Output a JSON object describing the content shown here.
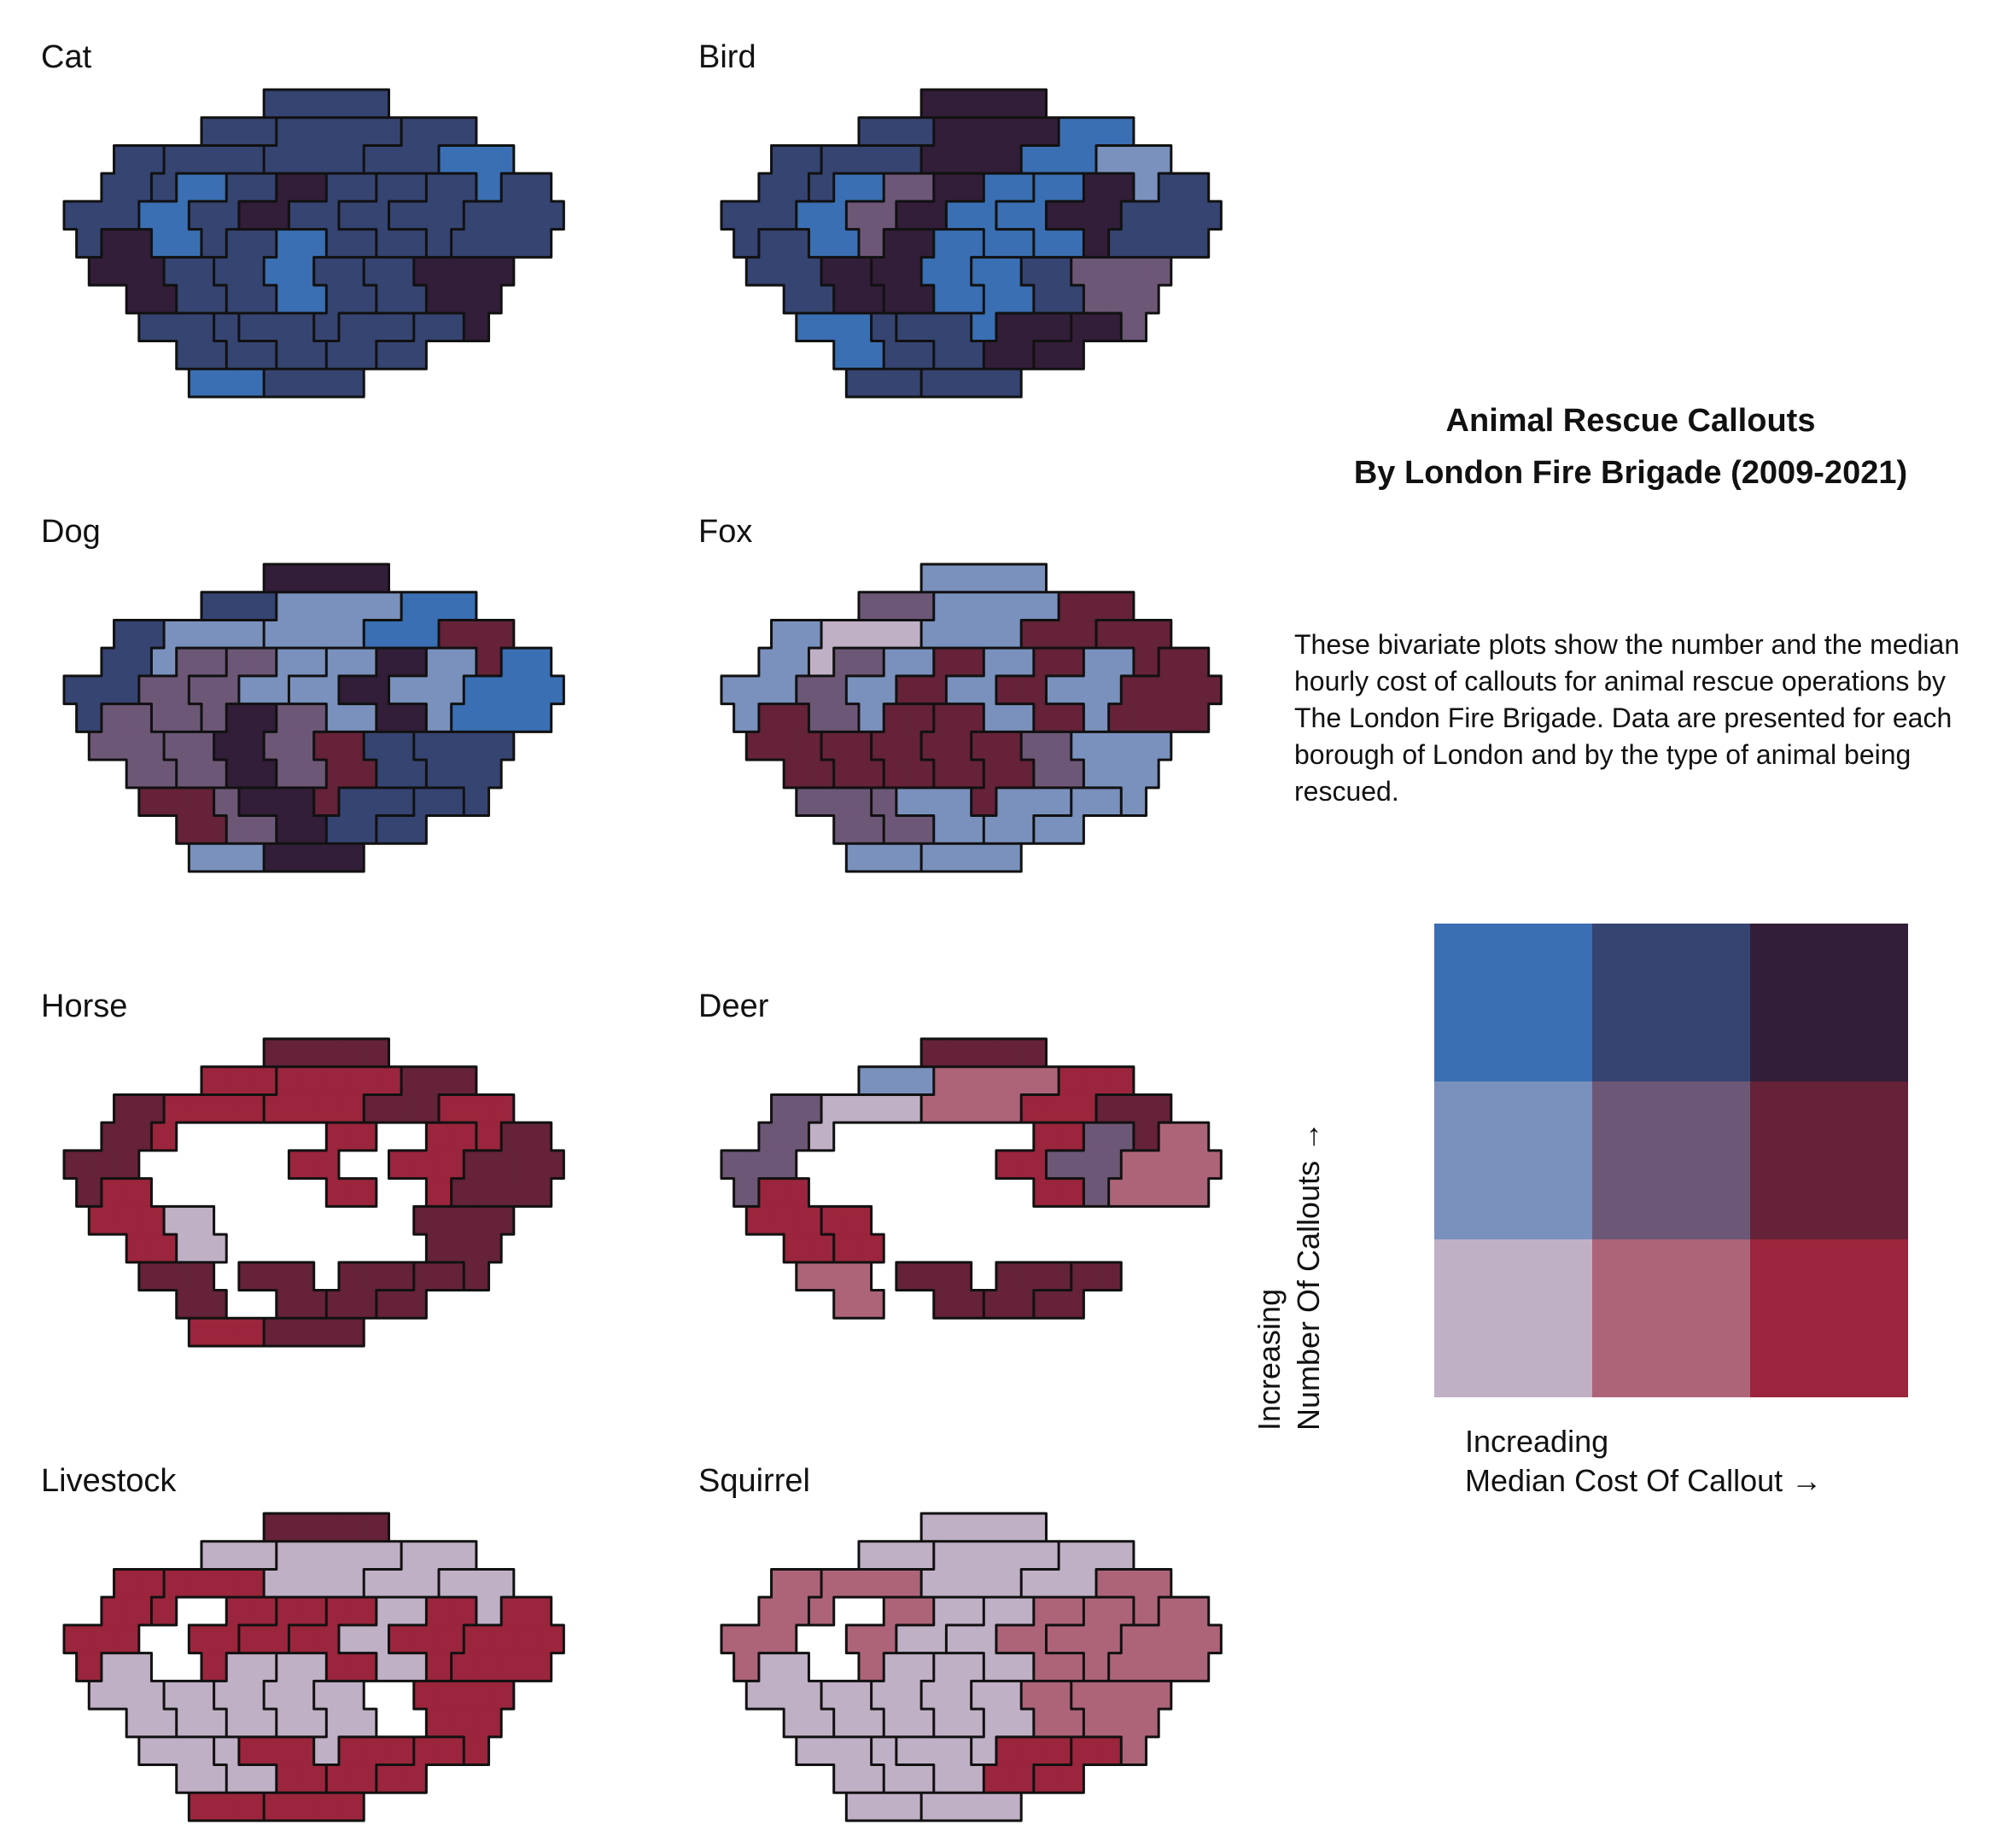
{
  "title": {
    "line1": "Animal Rescue Callouts",
    "line2": "By London Fire Brigade (2009-2021)"
  },
  "description": "These bivariate plots show the number and the median hourly cost of callouts for animal rescue operations by The London Fire Brigade. Data are presented for each borough of London and by the type of animal being rescued.",
  "legend": {
    "y_label_line1": "Increasing",
    "y_label_line2": "Number Of Callouts →",
    "x_label_line1": "Increading",
    "x_label_line2": "Median Cost Of Callout →",
    "colors_top_to_bottom": [
      [
        "#3a6fb3",
        "#364472",
        "#321e38"
      ],
      [
        "#7a91bd",
        "#6d5777",
        "#652238"
      ],
      [
        "#c0b0c5",
        "#ad6478",
        "#9b253c"
      ]
    ]
  },
  "chart_data": {
    "type": "heatmap",
    "description_key": "bivariate hex-cartogram small multiples; each cell = [callouts_level 0-2, cost_level 0-2], null = no data",
    "grid_rows": [
      "........NNNNN.......",
      ".....MMMOOOOOPPP....",
      "..AABBBBOOOOPPPQQQ..",
      ".AABCCDDEEFFGGHHQRR.",
      "AAACCDDEEFFGGHHHRRRR",
      "ASSCCDTTUUFFGGHRRRR.",
      ".SSSVVTTUUWWXXYYYY..",
      "..SSVVTTUUWWXXYYY...",
      "...ZZZabbbWcccddY...",
      "....ZZaabbccdd......",
      ".....eeeffff........"
    ],
    "boroughs": [
      "A",
      "B",
      "C",
      "D",
      "E",
      "F",
      "G",
      "H",
      "M",
      "N",
      "O",
      "P",
      "Q",
      "R",
      "S",
      "T",
      "U",
      "V",
      "W",
      "X",
      "Y",
      "Z",
      "a",
      "b",
      "c",
      "d",
      "e",
      "f"
    ],
    "panels": [
      {
        "name": "Cat",
        "cells": {
          "A": [
            2,
            1
          ],
          "B": [
            2,
            1
          ],
          "C": [
            2,
            0
          ],
          "D": [
            2,
            1
          ],
          "E": [
            2,
            2
          ],
          "F": [
            2,
            1
          ],
          "G": [
            2,
            1
          ],
          "H": [
            2,
            1
          ],
          "M": [
            2,
            1
          ],
          "N": [
            2,
            1
          ],
          "O": [
            2,
            1
          ],
          "P": [
            2,
            1
          ],
          "Q": [
            2,
            0
          ],
          "R": [
            2,
            1
          ],
          "S": [
            2,
            2
          ],
          "T": [
            2,
            1
          ],
          "U": [
            2,
            0
          ],
          "V": [
            2,
            1
          ],
          "W": [
            2,
            1
          ],
          "X": [
            2,
            1
          ],
          "Y": [
            2,
            2
          ],
          "Z": [
            2,
            1
          ],
          "a": [
            2,
            1
          ],
          "b": [
            2,
            1
          ],
          "c": [
            2,
            1
          ],
          "d": [
            2,
            1
          ],
          "e": [
            2,
            0
          ],
          "f": [
            2,
            1
          ]
        }
      },
      {
        "name": "Bird",
        "cells": {
          "A": [
            2,
            1
          ],
          "B": [
            2,
            1
          ],
          "C": [
            2,
            0
          ],
          "D": [
            1,
            1
          ],
          "E": [
            2,
            2
          ],
          "F": [
            2,
            0
          ],
          "G": [
            2,
            0
          ],
          "H": [
            2,
            2
          ],
          "M": [
            2,
            1
          ],
          "N": [
            2,
            2
          ],
          "O": [
            2,
            2
          ],
          "P": [
            2,
            0
          ],
          "Q": [
            1,
            0
          ],
          "R": [
            2,
            1
          ],
          "S": [
            2,
            1
          ],
          "T": [
            2,
            2
          ],
          "U": [
            2,
            0
          ],
          "V": [
            2,
            2
          ],
          "W": [
            2,
            0
          ],
          "X": [
            2,
            1
          ],
          "Y": [
            1,
            1
          ],
          "Z": [
            2,
            0
          ],
          "a": [
            2,
            1
          ],
          "b": [
            2,
            1
          ],
          "c": [
            2,
            2
          ],
          "d": [
            2,
            2
          ],
          "e": [
            2,
            1
          ],
          "f": [
            2,
            1
          ]
        }
      },
      {
        "name": "Dog",
        "cells": {
          "A": [
            2,
            1
          ],
          "B": [
            1,
            0
          ],
          "C": [
            1,
            1
          ],
          "D": [
            1,
            1
          ],
          "E": [
            1,
            0
          ],
          "F": [
            1,
            0
          ],
          "G": [
            2,
            2
          ],
          "H": [
            1,
            0
          ],
          "M": [
            2,
            1
          ],
          "N": [
            2,
            2
          ],
          "O": [
            1,
            0
          ],
          "P": [
            2,
            0
          ],
          "Q": [
            1,
            2
          ],
          "R": [
            2,
            0
          ],
          "S": [
            1,
            1
          ],
          "T": [
            2,
            2
          ],
          "U": [
            1,
            1
          ],
          "V": [
            1,
            1
          ],
          "W": [
            1,
            2
          ],
          "X": [
            2,
            1
          ],
          "Y": [
            2,
            1
          ],
          "Z": [
            1,
            2
          ],
          "a": [
            1,
            1
          ],
          "b": [
            2,
            2
          ],
          "c": [
            2,
            1
          ],
          "d": [
            2,
            1
          ],
          "e": [
            1,
            0
          ],
          "f": [
            2,
            2
          ]
        }
      },
      {
        "name": "Fox",
        "cells": {
          "A": [
            1,
            0
          ],
          "B": [
            0,
            0
          ],
          "C": [
            1,
            1
          ],
          "D": [
            1,
            0
          ],
          "E": [
            1,
            2
          ],
          "F": [
            1,
            0
          ],
          "G": [
            1,
            2
          ],
          "H": [
            1,
            0
          ],
          "M": [
            1,
            1
          ],
          "N": [
            1,
            0
          ],
          "O": [
            1,
            0
          ],
          "P": [
            1,
            2
          ],
          "Q": [
            1,
            2
          ],
          "R": [
            1,
            2
          ],
          "S": [
            1,
            2
          ],
          "T": [
            1,
            2
          ],
          "U": [
            1,
            2
          ],
          "V": [
            1,
            2
          ],
          "W": [
            1,
            2
          ],
          "X": [
            1,
            1
          ],
          "Y": [
            1,
            0
          ],
          "Z": [
            1,
            1
          ],
          "a": [
            1,
            1
          ],
          "b": [
            1,
            0
          ],
          "c": [
            1,
            0
          ],
          "d": [
            1,
            0
          ],
          "e": [
            1,
            0
          ],
          "f": [
            1,
            0
          ]
        }
      },
      {
        "name": "Horse",
        "cells": {
          "A": [
            1,
            2
          ],
          "B": [
            0,
            2
          ],
          "C": null,
          "D": null,
          "E": null,
          "F": [
            0,
            2
          ],
          "G": null,
          "H": [
            0,
            2
          ],
          "M": [
            0,
            2
          ],
          "N": [
            1,
            2
          ],
          "O": [
            0,
            2
          ],
          "P": [
            1,
            2
          ],
          "Q": [
            0,
            2
          ],
          "R": [
            1,
            2
          ],
          "S": [
            0,
            2
          ],
          "T": null,
          "U": null,
          "V": [
            0,
            0
          ],
          "W": null,
          "X": null,
          "Y": [
            1,
            2
          ],
          "Z": [
            1,
            2
          ],
          "a": null,
          "b": [
            1,
            2
          ],
          "c": [
            1,
            2
          ],
          "d": [
            1,
            2
          ],
          "e": [
            0,
            2
          ],
          "f": [
            1,
            2
          ]
        }
      },
      {
        "name": "Deer",
        "cells": {
          "A": [
            1,
            1
          ],
          "B": [
            0,
            0
          ],
          "C": null,
          "D": null,
          "E": null,
          "F": null,
          "G": [
            0,
            2
          ],
          "H": [
            1,
            1
          ],
          "M": [
            1,
            0
          ],
          "N": [
            1,
            2
          ],
          "O": [
            0,
            1
          ],
          "P": [
            0,
            2
          ],
          "Q": [
            1,
            2
          ],
          "R": [
            0,
            1
          ],
          "S": [
            0,
            2
          ],
          "T": null,
          "U": null,
          "V": [
            0,
            2
          ],
          "W": null,
          "X": null,
          "Y": null,
          "Z": [
            0,
            1
          ],
          "a": null,
          "b": [
            1,
            2
          ],
          "c": [
            1,
            2
          ],
          "d": [
            1,
            2
          ],
          "e": null,
          "f": null
        }
      },
      {
        "name": "Livestock",
        "cells": {
          "A": [
            0,
            2
          ],
          "B": [
            0,
            2
          ],
          "C": null,
          "D": [
            0,
            2
          ],
          "E": [
            0,
            2
          ],
          "F": [
            0,
            2
          ],
          "G": [
            0,
            0
          ],
          "H": [
            0,
            2
          ],
          "M": [
            0,
            0
          ],
          "N": [
            1,
            2
          ],
          "O": [
            0,
            0
          ],
          "P": [
            0,
            0
          ],
          "Q": [
            0,
            0
          ],
          "R": [
            0,
            2
          ],
          "S": [
            0,
            0
          ],
          "T": [
            0,
            0
          ],
          "U": [
            0,
            0
          ],
          "V": [
            0,
            0
          ],
          "W": [
            0,
            0
          ],
          "X": null,
          "Y": [
            0,
            2
          ],
          "Z": [
            0,
            0
          ],
          "a": [
            0,
            0
          ],
          "b": [
            0,
            2
          ],
          "c": [
            0,
            2
          ],
          "d": [
            0,
            2
          ],
          "e": [
            0,
            2
          ],
          "f": [
            0,
            2
          ]
        }
      },
      {
        "name": "Squirrel",
        "cells": {
          "A": [
            0,
            1
          ],
          "B": [
            0,
            1
          ],
          "C": null,
          "D": [
            0,
            1
          ],
          "E": [
            0,
            0
          ],
          "F": [
            0,
            0
          ],
          "G": [
            0,
            1
          ],
          "H": [
            0,
            1
          ],
          "M": [
            0,
            0
          ],
          "N": [
            0,
            0
          ],
          "O": [
            0,
            0
          ],
          "P": [
            0,
            0
          ],
          "Q": [
            0,
            1
          ],
          "R": [
            0,
            1
          ],
          "S": [
            0,
            0
          ],
          "T": [
            0,
            0
          ],
          "U": [
            0,
            0
          ],
          "V": [
            0,
            0
          ],
          "W": [
            0,
            0
          ],
          "X": [
            0,
            1
          ],
          "Y": [
            0,
            1
          ],
          "Z": [
            0,
            0
          ],
          "a": [
            0,
            0
          ],
          "b": [
            0,
            0
          ],
          "c": [
            0,
            2
          ],
          "d": [
            0,
            2
          ],
          "e": [
            0,
            0
          ],
          "f": [
            0,
            0
          ]
        }
      }
    ]
  }
}
